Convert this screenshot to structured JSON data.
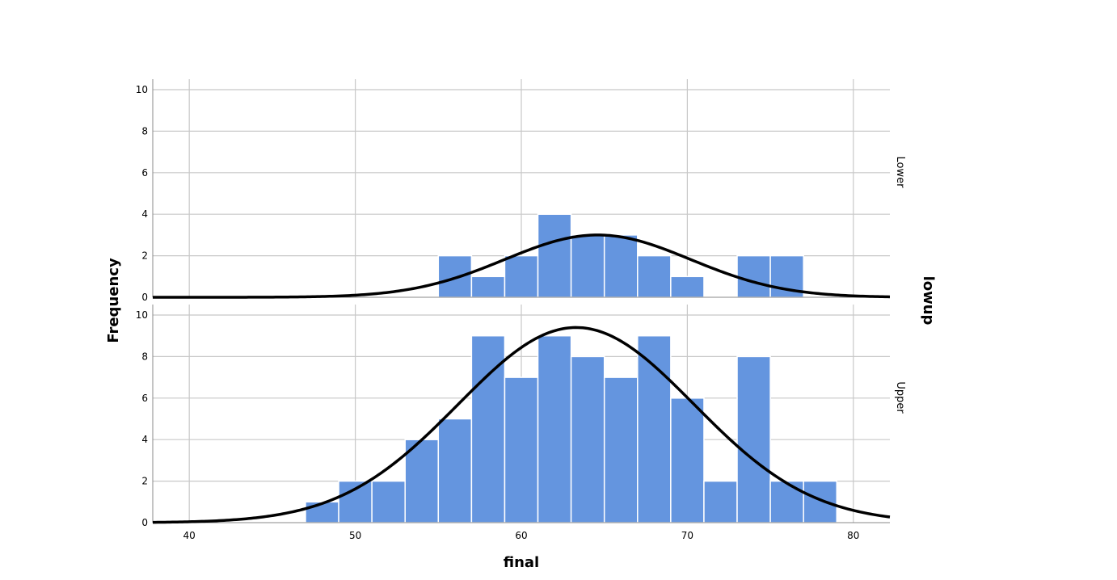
{
  "chart_data": {
    "type": "bar",
    "xlabel": "final",
    "ylabel": "Frequency",
    "panel_variable": "lowup",
    "xlim": [
      37.8,
      82.2
    ],
    "xticks": [
      40,
      50,
      60,
      70,
      80
    ],
    "ylim": [
      0,
      10
    ],
    "yticks": [
      0,
      2,
      4,
      6,
      8,
      10
    ],
    "grid": true,
    "bar_color": "#6495df",
    "curve_color": "#000000",
    "bin_width": 2,
    "panels": [
      {
        "label": "Lower",
        "bins": [
          {
            "x0": 55,
            "count": 2
          },
          {
            "x0": 57,
            "count": 1
          },
          {
            "x0": 59,
            "count": 2
          },
          {
            "x0": 61,
            "count": 4
          },
          {
            "x0": 63,
            "count": 3
          },
          {
            "x0": 65,
            "count": 3
          },
          {
            "x0": 67,
            "count": 2
          },
          {
            "x0": 69,
            "count": 1
          },
          {
            "x0": 73,
            "count": 2
          },
          {
            "x0": 75,
            "count": 2
          }
        ],
        "normal_curve": {
          "mean": 64.6,
          "sd": 5.6,
          "peak": 3.0
        }
      },
      {
        "label": "Upper",
        "bins": [
          {
            "x0": 47,
            "count": 1
          },
          {
            "x0": 49,
            "count": 2
          },
          {
            "x0": 51,
            "count": 2
          },
          {
            "x0": 53,
            "count": 4
          },
          {
            "x0": 55,
            "count": 5
          },
          {
            "x0": 57,
            "count": 9
          },
          {
            "x0": 59,
            "count": 7
          },
          {
            "x0": 61,
            "count": 9
          },
          {
            "x0": 63,
            "count": 8
          },
          {
            "x0": 65,
            "count": 7
          },
          {
            "x0": 67,
            "count": 9
          },
          {
            "x0": 69,
            "count": 6
          },
          {
            "x0": 71,
            "count": 2
          },
          {
            "x0": 73,
            "count": 8
          },
          {
            "x0": 75,
            "count": 2
          },
          {
            "x0": 77,
            "count": 2
          }
        ],
        "normal_curve": {
          "mean": 63.3,
          "sd": 7.1,
          "peak": 9.4
        }
      }
    ]
  }
}
